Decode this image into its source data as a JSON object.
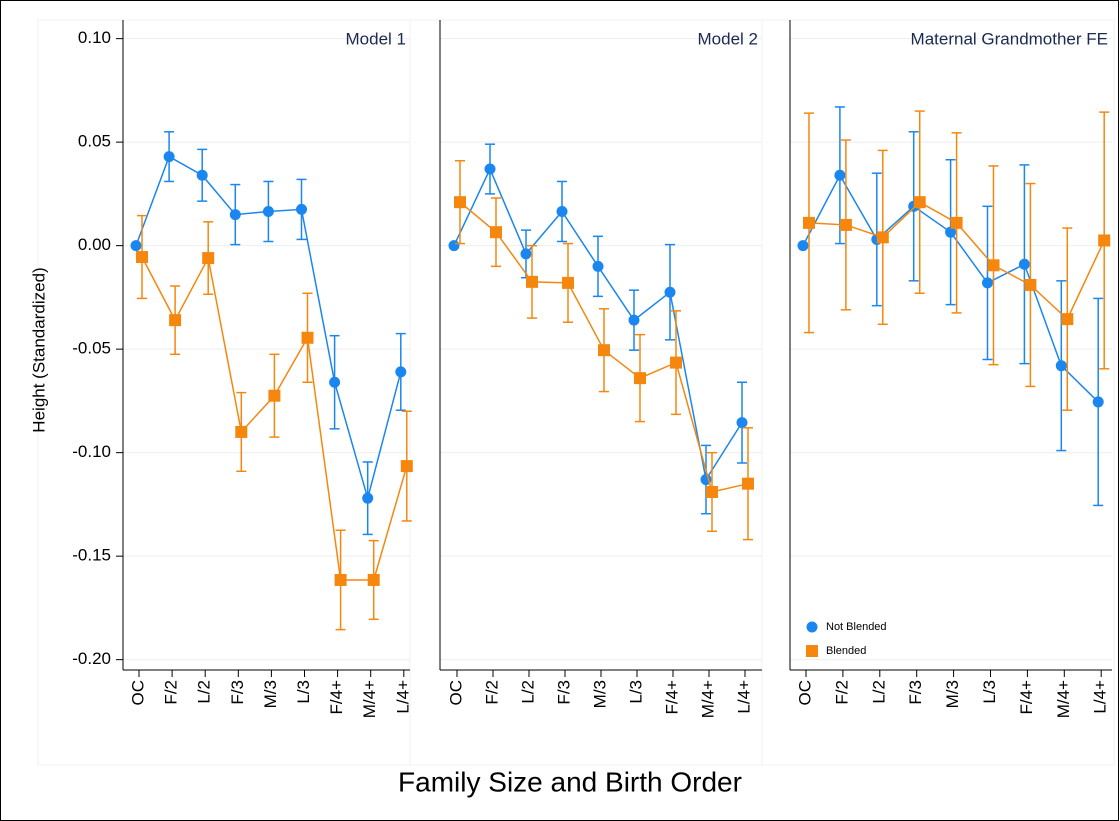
{
  "chart_data": [
    {
      "type": "errorbar",
      "title": "Model 1",
      "ylabel": "Height (Standardized)",
      "xlabel": "Family Size and Birth Order",
      "categories": [
        "OC",
        "F/2",
        "L/2",
        "F/3",
        "M/3",
        "L/3",
        "F/4+",
        "M/4+",
        "L/4+"
      ],
      "ylim": [
        -0.205,
        0.109
      ],
      "yticks": [
        {
          "value": 0.1,
          "label": "0.10"
        },
        {
          "value": 0.05,
          "label": "0.05"
        },
        {
          "value": 0,
          "label": "0.00"
        },
        {
          "value": -0.05,
          "label": "-0.05"
        },
        {
          "value": -0.1,
          "label": "-0.10"
        },
        {
          "value": -0.15,
          "label": "-0.15"
        },
        {
          "value": -0.2,
          "label": "-0.20"
        }
      ],
      "grid": true,
      "series": [
        {
          "name": "Not Blended",
          "color": "#1a86f0",
          "marker": "circle",
          "values": [
            0,
            0.043,
            0.034,
            0.015,
            0.0165,
            0.0175,
            -0.066,
            -0.122,
            -0.061
          ],
          "errors": [
            null,
            0.012,
            0.0125,
            0.0145,
            0.0145,
            0.0145,
            0.0225,
            0.0175,
            0.0185
          ]
        },
        {
          "name": "Blended",
          "color": "#f5870f",
          "marker": "square",
          "values": [
            -0.0055,
            -0.036,
            -0.006,
            -0.09,
            -0.0725,
            -0.0445,
            -0.1615,
            -0.1615,
            -0.1065
          ],
          "errors": [
            0.02,
            0.0165,
            0.0175,
            0.019,
            0.02,
            0.0215,
            0.024,
            0.019,
            0.0265
          ]
        }
      ]
    },
    {
      "type": "errorbar",
      "title": "Model 2",
      "categories": [
        "OC",
        "F/2",
        "L/2",
        "F/3",
        "M/3",
        "L/3",
        "F/4+",
        "M/4+",
        "L/4+"
      ],
      "ylim": [
        -0.205,
        0.109
      ],
      "grid": true,
      "series": [
        {
          "name": "Not Blended",
          "color": "#1a86f0",
          "marker": "circle",
          "values": [
            0,
            0.037,
            -0.004,
            0.0165,
            -0.01,
            -0.036,
            -0.0225,
            -0.113,
            -0.0855
          ],
          "errors": [
            null,
            0.012,
            0.0115,
            0.0145,
            0.0145,
            0.0145,
            0.023,
            0.0165,
            0.0195
          ]
        },
        {
          "name": "Blended",
          "color": "#f5870f",
          "marker": "square",
          "values": [
            0.021,
            0.0065,
            -0.0175,
            -0.018,
            -0.0505,
            -0.064,
            -0.0565,
            -0.119,
            -0.115
          ],
          "errors": [
            0.02,
            0.0165,
            0.0175,
            0.019,
            0.02,
            0.021,
            0.025,
            0.019,
            0.027
          ]
        }
      ]
    },
    {
      "type": "errorbar",
      "title": "Maternal Grandmother FE",
      "categories": [
        "OC",
        "F/2",
        "L/2",
        "F/3",
        "M/3",
        "L/3",
        "F/4+",
        "M/4+",
        "L/4+"
      ],
      "ylim": [
        -0.205,
        0.109
      ],
      "grid": true,
      "legend": "lower-left",
      "series": [
        {
          "name": "Not Blended",
          "color": "#1a86f0",
          "marker": "circle",
          "values": [
            0,
            0.034,
            0.003,
            0.019,
            0.0065,
            -0.018,
            -0.009,
            -0.058,
            -0.0755
          ],
          "errors": [
            null,
            0.033,
            0.032,
            0.036,
            0.035,
            0.037,
            0.048,
            0.041,
            0.05
          ]
        },
        {
          "name": "Blended",
          "color": "#f5870f",
          "marker": "square",
          "values": [
            0.011,
            0.01,
            0.004,
            0.021,
            0.011,
            -0.0095,
            -0.019,
            -0.0355,
            0.0025
          ],
          "errors": [
            0.053,
            0.041,
            0.042,
            0.044,
            0.0435,
            0.048,
            0.049,
            0.044,
            0.062
          ]
        }
      ]
    }
  ]
}
